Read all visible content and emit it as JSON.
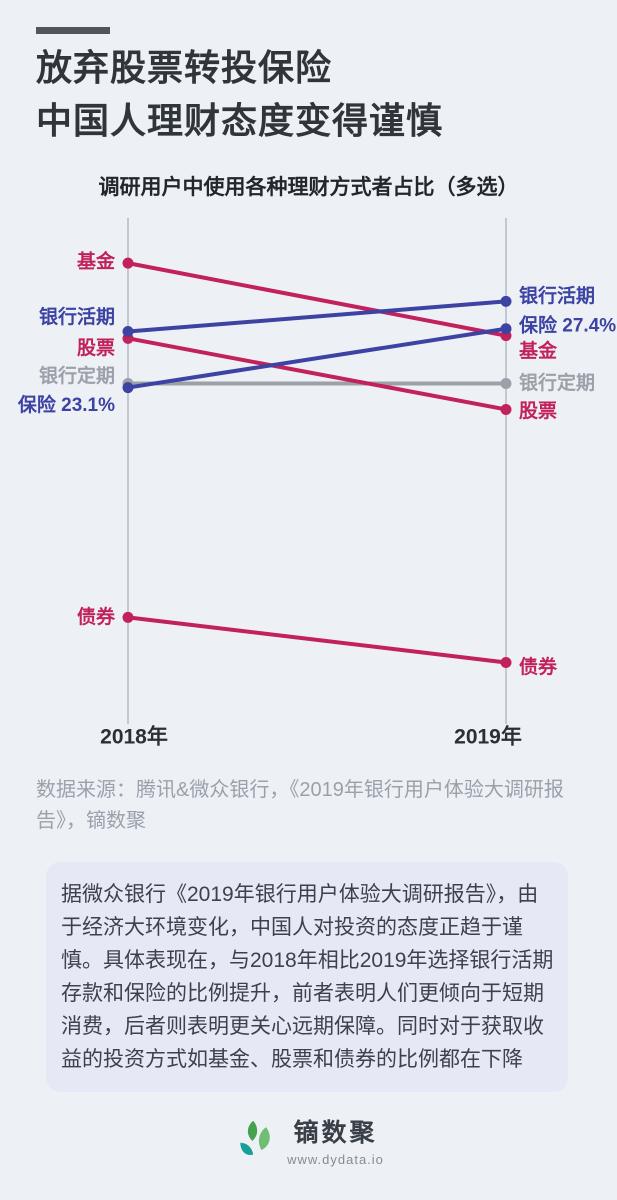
{
  "header": {
    "title_lines": [
      "放弃股票转投保险",
      "中国人理财态度变得谨慎"
    ]
  },
  "chart_data": {
    "type": "slope",
    "subtitle": "调研用户中使用各种理财方式者占比（多选）",
    "unit": "%",
    "x_categories": [
      "2018年",
      "2019年"
    ],
    "ylim": [
      -1.5,
      35.5
    ],
    "grid": false,
    "series": [
      {
        "key": "fund",
        "name": "基金",
        "color": "#c2215c",
        "values": [
          32.2,
          26.9
        ],
        "left_label": "基金",
        "right_label": "基金"
      },
      {
        "key": "demand-deposit",
        "name": "银行活期",
        "color": "#3d43a3",
        "values": [
          27.2,
          29.4
        ],
        "left_label": "银行活期",
        "right_label": "银行活期"
      },
      {
        "key": "stocks",
        "name": "股票",
        "color": "#c2215c",
        "values": [
          26.7,
          21.5
        ],
        "left_label": "股票",
        "right_label": "股票"
      },
      {
        "key": "time-deposit",
        "name": "银行定期",
        "color": "#9ca1a9",
        "values": [
          23.4,
          23.4
        ],
        "left_label": "银行定期",
        "right_label": "银行定期"
      },
      {
        "key": "insurance",
        "name": "保险",
        "color": "#3d43a3",
        "values": [
          23.1,
          27.4
        ],
        "left_label": "保险 23.1%",
        "right_label": "保险 27.4%"
      },
      {
        "key": "bonds",
        "name": "债券",
        "color": "#c2215c",
        "values": [
          6.3,
          3.0
        ],
        "left_label": "债券",
        "right_label": "债券"
      }
    ],
    "labeled_values": {
      "insurance_2018": "23.1%",
      "insurance_2019": "27.4%"
    }
  },
  "colors": {
    "red": "#c2215c",
    "blue": "#3d43a3",
    "gray": "#9ca1a9",
    "axis": "#c3c8cf",
    "summary_box": "#e7e8f6"
  },
  "source_note": "数据来源：腾讯&微众银行，《2019年银行用户体验大调研报告》，镝数聚",
  "summary": "据微众银行《2019年银行用户体验大调研报告》，由于经济大环境变化，中国人对投资的态度正趋于谨慎。具体表现在，与2018年相比2019年选择银行活期存款和保险的比例提升，前者表明人们更倾向于短期消费，后者则表明更关心远期保障。同时对于获取收益的投资方式如基金、股票和债券的比例都在下降",
  "footer": {
    "logo_name": "镝数聚",
    "logo_url": "www.dydata.io",
    "leaf_colors": [
      "#46a24e",
      "#6fbe72",
      "#17a099"
    ]
  }
}
